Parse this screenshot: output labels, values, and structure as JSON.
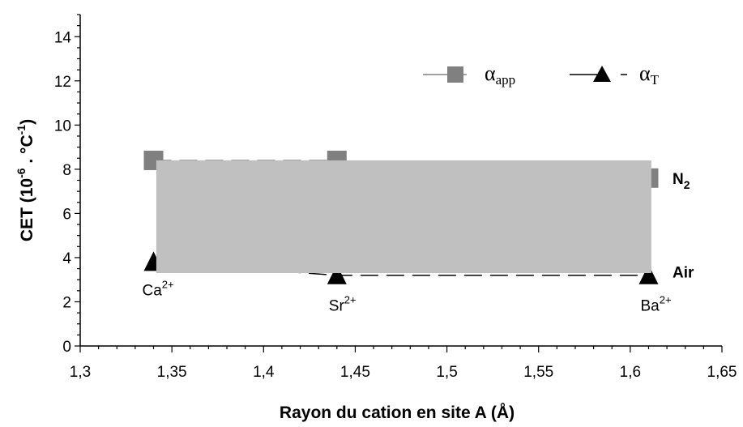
{
  "chart_data": {
    "type": "line",
    "xlabel": "Rayon du cation en site A (Å)",
    "ylabel": {
      "main": "CET (10",
      "sup1": "-6",
      "mid": " . °C",
      "sup2": "-1",
      "end": ")"
    },
    "xlim": [
      1.3,
      1.65
    ],
    "ylim": [
      0,
      15
    ],
    "x_ticks": [
      1.3,
      1.35,
      1.4,
      1.45,
      1.5,
      1.55,
      1.6,
      1.65
    ],
    "x_tick_labels": [
      "1,3",
      "1,35",
      "1,4",
      "1,45",
      "1,5",
      "1,55",
      "1,6",
      "1,65"
    ],
    "y_ticks": [
      0,
      2,
      4,
      6,
      8,
      10,
      12,
      14
    ],
    "y_tick_labels": [
      "0",
      "2",
      "4",
      "6",
      "8",
      "10",
      "12",
      "14"
    ],
    "grid": false,
    "legend_position": "top-right",
    "series": [
      {
        "name": "α",
        "name_sub": "app",
        "marker": "square",
        "color": "#808080",
        "line": "dashed",
        "x": [
          1.34,
          1.44,
          1.61
        ],
        "y": [
          8.4,
          8.4,
          7.6
        ],
        "end_label": "N",
        "end_label_sub": "2"
      },
      {
        "name": "α",
        "name_sub": "T",
        "marker": "triangle",
        "color": "#000000",
        "line": "dashed",
        "x": [
          1.34,
          1.44,
          1.61
        ],
        "y": [
          3.8,
          3.2,
          3.2
        ],
        "end_label": "Air",
        "end_label_sub": ""
      }
    ],
    "point_labels": [
      {
        "x": 1.34,
        "text": "Ca",
        "sup": "2+"
      },
      {
        "x": 1.44,
        "text": "Sr",
        "sup": "2+"
      },
      {
        "x": 1.61,
        "text": "Ba",
        "sup": "2+"
      }
    ],
    "overlay_box": {
      "x_range": [
        1.3415,
        1.6115
      ],
      "y_range": [
        3.3,
        8.4
      ],
      "color": "#c0c0c0"
    }
  }
}
